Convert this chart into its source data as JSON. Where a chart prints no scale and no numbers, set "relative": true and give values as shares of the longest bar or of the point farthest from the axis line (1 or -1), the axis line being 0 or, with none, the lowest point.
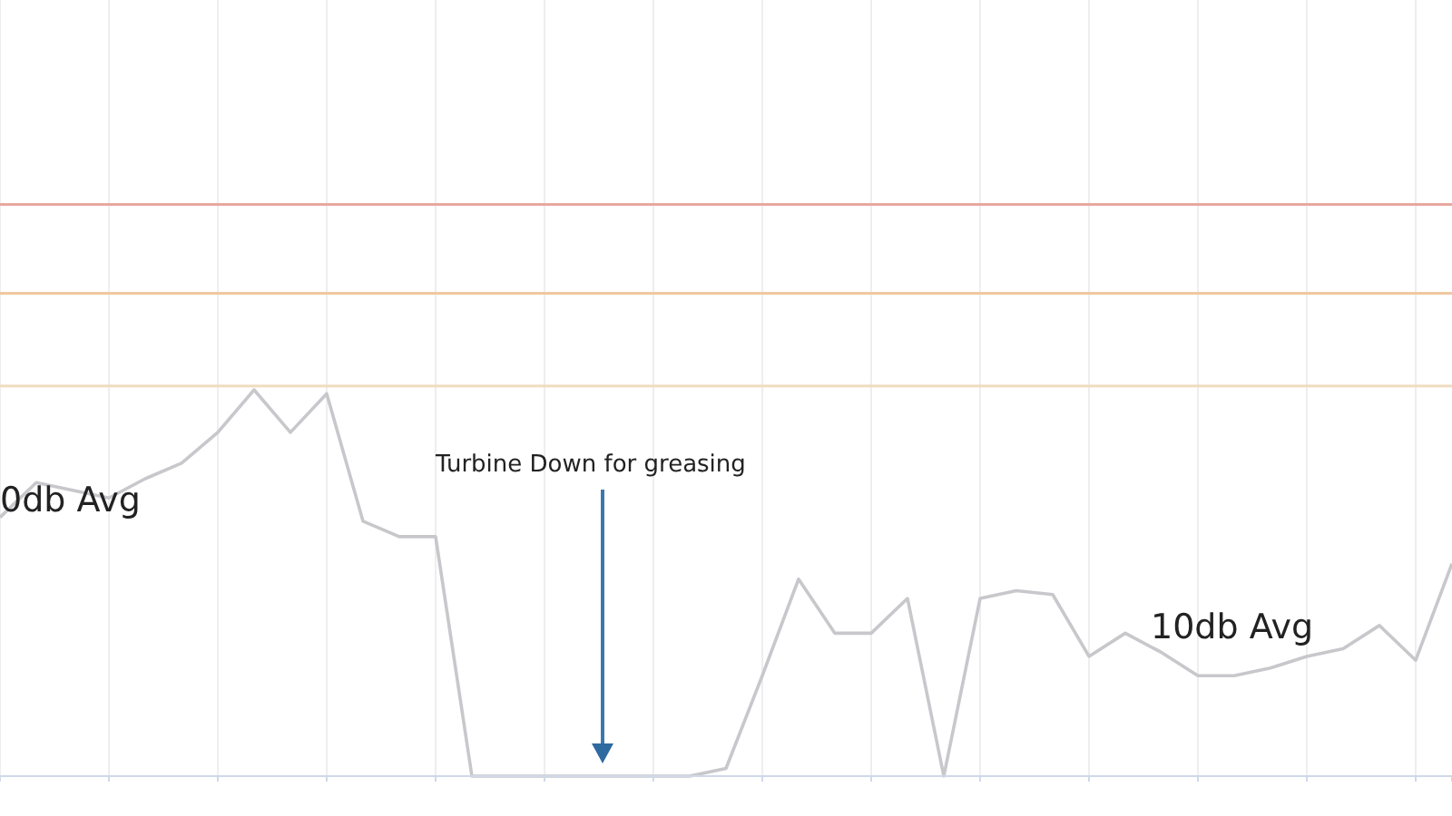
{
  "chart_data": {
    "type": "line",
    "relative": true,
    "grid": "x",
    "marker": "none",
    "line_style": "solid",
    "categories": [
      null,
      null,
      null,
      null,
      null,
      null,
      null,
      null,
      null,
      null,
      null,
      null,
      null,
      null,
      null,
      null,
      null,
      null,
      null,
      null,
      null,
      null,
      null,
      null,
      null,
      null,
      null,
      null,
      null,
      null,
      null,
      null,
      null,
      null,
      null,
      null,
      null,
      null,
      null,
      null,
      null
    ],
    "series": [
      {
        "color": "#c8c8cc",
        "values": [
          0.67,
          0.76,
          0.74,
          0.72,
          0.77,
          0.81,
          0.89,
          1,
          0.89,
          0.99,
          0.66,
          0.62,
          0.62,
          0,
          0,
          0,
          0,
          0,
          0,
          0,
          0.02,
          0.26,
          0.51,
          0.37,
          0.37,
          0.46,
          0,
          0.46,
          0.48,
          0.47,
          0.31,
          0.37,
          0.32,
          0.26,
          0.26,
          0.28,
          0.31,
          0.33,
          0.39,
          0.3,
          0.55
        ]
      }
    ],
    "ref_lines": [
      {
        "axis": "y",
        "value": 1.48,
        "color": "#e8a8a0"
      },
      {
        "axis": "y",
        "value": 1.25,
        "color": "#f0c8a0"
      },
      {
        "axis": "y",
        "value": 1.01,
        "color": "#f0dcc0"
      }
    ],
    "annotations": [
      "0db Avg",
      "Turbine Down for greasing",
      "10db Avg"
    ]
  }
}
